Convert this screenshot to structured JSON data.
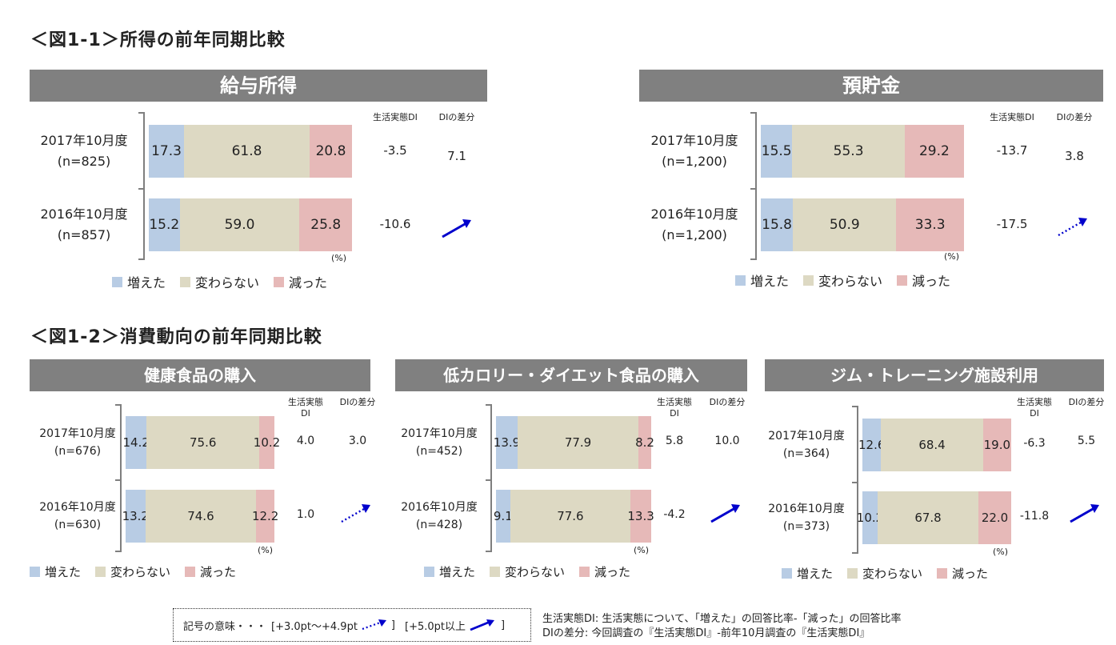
{
  "titles": {
    "fig1_1": "＜図1-1＞所得の前年同期比較",
    "fig1_2": "＜図1-2＞消費動向の前年同期比較"
  },
  "columns": {
    "di": "生活実態DI",
    "di_split": "生活実態\nDI",
    "diff": "DIの差分"
  },
  "pct_unit": "(%)",
  "legend": {
    "increase": "増えた",
    "same": "変わらない",
    "decrease": "減った"
  },
  "colors": {
    "increase": "#b8cce4",
    "same": "#ddd9c3",
    "decrease": "#e6b9b8",
    "header": "#808080",
    "arrow": "#0000cc"
  },
  "key": {
    "label": "記号の意味・・・",
    "dotted": "[+3.0pt～+4.9pt",
    "close1": "]",
    "solid": "[+5.0pt以上",
    "close2": "]"
  },
  "notes": {
    "line1": "生活実態DI: 生活実態について、「増えた」の回答比率-「減った」の回答比率",
    "line2": "DIの差分: 今回調査の『生活実態DI』-前年10月調査の『生活実態DI』"
  },
  "chart_data": [
    {
      "type": "bar",
      "stacked": true,
      "orientation": "horizontal",
      "title": "給与所得",
      "series": [
        {
          "name": "増えた",
          "values": [
            17.3,
            15.2
          ]
        },
        {
          "name": "変わらない",
          "values": [
            61.8,
            59.0
          ]
        },
        {
          "name": "減った",
          "values": [
            20.8,
            25.8
          ]
        }
      ],
      "categories": [
        "2017年10月度",
        "2016年10月度"
      ],
      "n": [
        "(n=825)",
        "(n=857)"
      ],
      "di": [
        "-3.5",
        "-10.6"
      ],
      "diff": "7.1",
      "arrow": "solid"
    },
    {
      "type": "bar",
      "stacked": true,
      "orientation": "horizontal",
      "title": "預貯金",
      "series": [
        {
          "name": "増えた",
          "values": [
            15.5,
            15.8
          ]
        },
        {
          "name": "変わらない",
          "values": [
            55.3,
            50.9
          ]
        },
        {
          "name": "減った",
          "values": [
            29.2,
            33.3
          ]
        }
      ],
      "categories": [
        "2017年10月度",
        "2016年10月度"
      ],
      "n": [
        "(n=1,200)",
        "(n=1,200)"
      ],
      "di": [
        "-13.7",
        "-17.5"
      ],
      "diff": "3.8",
      "arrow": "dotted"
    },
    {
      "type": "bar",
      "stacked": true,
      "orientation": "horizontal",
      "title": "健康食品の購入",
      "series": [
        {
          "name": "増えた",
          "values": [
            14.2,
            13.2
          ]
        },
        {
          "name": "変わらない",
          "values": [
            75.6,
            74.6
          ]
        },
        {
          "name": "減った",
          "values": [
            10.2,
            12.2
          ]
        }
      ],
      "categories": [
        "2017年10月度",
        "2016年10月度"
      ],
      "n": [
        "(n=676)",
        "(n=630)"
      ],
      "di": [
        "4.0",
        "1.0"
      ],
      "diff": "3.0",
      "arrow": "dotted"
    },
    {
      "type": "bar",
      "stacked": true,
      "orientation": "horizontal",
      "title": "低カロリー・ダイエット食品の購入",
      "series": [
        {
          "name": "増えた",
          "values": [
            13.9,
            9.1
          ]
        },
        {
          "name": "変わらない",
          "values": [
            77.9,
            77.6
          ]
        },
        {
          "name": "減った",
          "values": [
            8.2,
            13.3
          ]
        }
      ],
      "categories": [
        "2017年10月度",
        "2016年10月度"
      ],
      "n": [
        "(n=452)",
        "(n=428)"
      ],
      "di": [
        "5.8",
        "-4.2"
      ],
      "diff": "10.0",
      "arrow": "solid"
    },
    {
      "type": "bar",
      "stacked": true,
      "orientation": "horizontal",
      "title": "ジム・トレーニング施設利用",
      "series": [
        {
          "name": "増えた",
          "values": [
            12.6,
            10.2
          ]
        },
        {
          "name": "変わらない",
          "values": [
            68.4,
            67.8
          ]
        },
        {
          "name": "減った",
          "values": [
            19.0,
            22.0
          ]
        }
      ],
      "categories": [
        "2017年10月度",
        "2016年10月度"
      ],
      "n": [
        "(n=364)",
        "(n=373)"
      ],
      "di": [
        "-6.3",
        "-11.8"
      ],
      "diff": "5.5",
      "arrow": "solid"
    }
  ]
}
